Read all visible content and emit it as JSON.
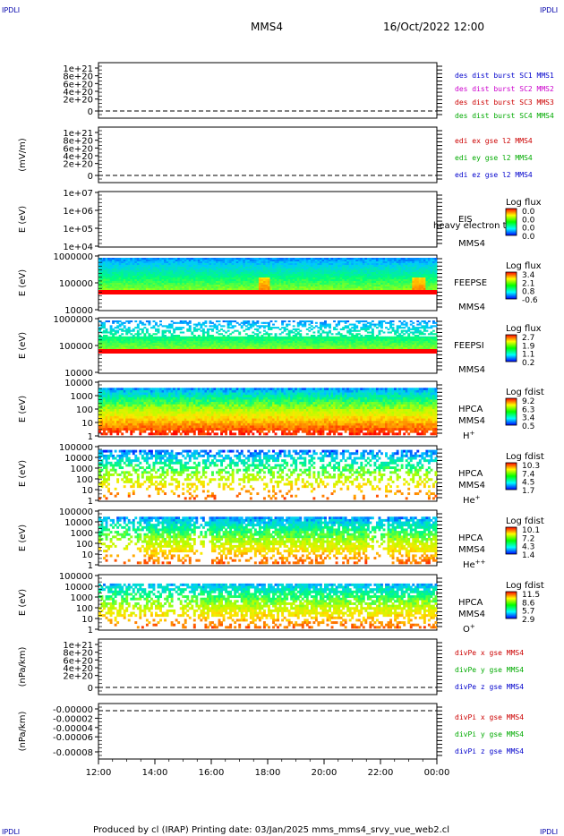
{
  "header": {
    "corner_left_top": "IPDLI",
    "corner_right_top": "IPDLI",
    "corner_left_bottom": "IPDLI",
    "corner_right_bottom": "IPDLI",
    "spacecraft": "MMS4",
    "datetime": "16/Oct/2022 12:00"
  },
  "footer": {
    "text": "Produced by cl (IRAP)   Printing date: 03/Jan/2025   mms_mms4_srvy_vue_web2.cl"
  },
  "colors": {
    "mms1": "#0000cc",
    "mms2": "#cc00cc",
    "mms3": "#cc0000",
    "mms4": "#00aa00",
    "x": "#cc0000",
    "y": "#00aa00",
    "z": "#0000cc"
  },
  "chart_data": {
    "type": "heatmap",
    "x_tick_labels": [
      "12:00",
      "14:00",
      "16:00",
      "18:00",
      "20:00",
      "22:00",
      "00:00"
    ],
    "x_range_hours": [
      12,
      24
    ],
    "panels": [
      {
        "id": "des-dist",
        "kind": "line",
        "ylabel": "",
        "tick_labels": [
          "1e+21",
          "8e+20",
          "6e+20",
          "4e+20",
          "2e+20",
          "0"
        ],
        "dashed_zero": true,
        "legend": [
          {
            "text": "des dist burst SC1 MMS1",
            "color": "#0000cc"
          },
          {
            "text": "des dist burst SC2 MMS2",
            "color": "#cc00cc"
          },
          {
            "text": "des dist burst SC3 MMS3",
            "color": "#cc0000"
          },
          {
            "text": "des dist burst SC4 MMS4",
            "color": "#00aa00"
          }
        ]
      },
      {
        "id": "edi",
        "kind": "line",
        "ylabel": "(mV/m)",
        "tick_labels": [
          "1e+21",
          "8e+20",
          "6e+20",
          "4e+20",
          "2e+20",
          "0"
        ],
        "dashed_zero": true,
        "legend": [
          {
            "text": "edi ex gse l2 MMS4",
            "color": "#cc0000"
          },
          {
            "text": "edi ey gse l2 MMS4",
            "color": "#00aa00"
          },
          {
            "text": "edi ez gse l2 MMS4",
            "color": "#0000cc"
          }
        ]
      },
      {
        "id": "eis",
        "kind": "spectro",
        "ylabel": "E (eV)",
        "tick_labels": [
          "1e+07",
          "1e+06",
          "1e+05",
          "1e+04"
        ],
        "instrument": "EIS",
        "species": "",
        "spacecraft": "MMS4",
        "overlay": "heavy electron to",
        "cbar_title": "Log flux",
        "cbar_values": [
          "0.0",
          "0.0",
          "0.0",
          "0.0"
        ],
        "empty": true
      },
      {
        "id": "feepse",
        "kind": "spectro",
        "ylabel": "E (eV)",
        "tick_labels": [
          "1000000",
          "100000",
          "10000"
        ],
        "instrument": "FEEPSE",
        "species": "",
        "spacecraft": "MMS4",
        "cbar_title": "Log flux",
        "cbar_values": [
          "3.4",
          "2.1",
          "0.8",
          "-0.6"
        ],
        "style": "feeps_e"
      },
      {
        "id": "feepsi",
        "kind": "spectro",
        "ylabel": "E (eV)",
        "tick_labels": [
          "1000000",
          "100000",
          "10000"
        ],
        "instrument": "FEEPSI",
        "species": "",
        "spacecraft": "MMS4",
        "cbar_title": "Log flux",
        "cbar_values": [
          "2.7",
          "1.9",
          "1.1",
          "0.2"
        ],
        "style": "feeps_i"
      },
      {
        "id": "hpca-h",
        "kind": "spectro",
        "ylabel": "E (eV)",
        "tick_labels": [
          "10000",
          "1000",
          "100",
          "10",
          "1"
        ],
        "instrument": "HPCA",
        "species": "H+",
        "spacecraft": "MMS4",
        "cbar_title": "Log fdist",
        "cbar_values": [
          "9.2",
          "6.3",
          "3.4",
          "0.5"
        ],
        "style": "hpca_h"
      },
      {
        "id": "hpca-he",
        "kind": "spectro",
        "ylabel": "E (eV)",
        "tick_labels": [
          "100000",
          "10000",
          "1000",
          "100",
          "10",
          "1"
        ],
        "instrument": "HPCA",
        "species": "He+",
        "spacecraft": "MMS4",
        "cbar_title": "Log fdist",
        "cbar_values": [
          "10.3",
          "7.4",
          "4.5",
          "1.7"
        ],
        "style": "hpca_sparse"
      },
      {
        "id": "hpca-he2",
        "kind": "spectro",
        "ylabel": "E (eV)",
        "tick_labels": [
          "100000",
          "10000",
          "1000",
          "100",
          "10",
          "1"
        ],
        "instrument": "HPCA",
        "species": "He++",
        "spacecraft": "MMS4",
        "cbar_title": "Log fdist",
        "cbar_values": [
          "10.1",
          "7.2",
          "4.3",
          "1.4"
        ],
        "style": "hpca_mid"
      },
      {
        "id": "hpca-o",
        "kind": "spectro",
        "ylabel": "E (eV)",
        "tick_labels": [
          "100000",
          "10000",
          "1000",
          "100",
          "10",
          "1"
        ],
        "instrument": "HPCA",
        "species": "O+",
        "spacecraft": "MMS4",
        "cbar_title": "Log fdist",
        "cbar_values": [
          "11.5",
          "8.6",
          "5.7",
          "2.9"
        ],
        "style": "hpca_o"
      },
      {
        "id": "divpe",
        "kind": "line",
        "ylabel": "(nPa/km)",
        "tick_labels": [
          "1e+21",
          "8e+20",
          "6e+20",
          "4e+20",
          "2e+20",
          "0"
        ],
        "dashed_zero": true,
        "legend": [
          {
            "text": "divPe x gse MMS4",
            "color": "#cc0000"
          },
          {
            "text": "divPe y gse MMS4",
            "color": "#00aa00"
          },
          {
            "text": "divPe z gse MMS4",
            "color": "#0000cc"
          }
        ]
      },
      {
        "id": "divpi",
        "kind": "line",
        "ylabel": "(nPa/km)",
        "tick_labels": [
          "-0.00000",
          "-0.00002",
          "-0.00004",
          "-0.00006",
          "-0.00008"
        ],
        "dashed_top": true,
        "legend": [
          {
            "text": "divPi x gse MMS4",
            "color": "#cc0000"
          },
          {
            "text": "divPi y gse MMS4",
            "color": "#00aa00"
          },
          {
            "text": "divPi z gse MMS4",
            "color": "#0000cc"
          }
        ]
      }
    ]
  }
}
